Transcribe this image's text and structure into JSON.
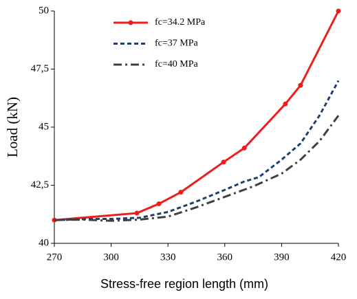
{
  "chart_data": {
    "type": "line",
    "xlabel": "Stress-free region length (mm)",
    "ylabel": "Load (kN)",
    "xlim": [
      270,
      420
    ],
    "xticks": [
      270,
      300,
      330,
      360,
      390,
      420
    ],
    "ylim": [
      40,
      50
    ],
    "yticks": [
      40,
      {
        "value": 42.5,
        "label": "42,5"
      },
      45,
      {
        "value": 47.5,
        "label": "47,5"
      },
      50
    ],
    "series": [
      {
        "name": "fc=34.2 MPa",
        "color": "#ee1c1c",
        "style": "solid",
        "marker": true,
        "x": [
          270,
          313.6,
          325.2,
          336.8,
          359.4,
          370.3,
          392,
          400,
          420
        ],
        "values": [
          41,
          41.3,
          41.7,
          42.2,
          43.5,
          44.1,
          46,
          46.8,
          50
        ]
      },
      {
        "name": "fc=37 MPa",
        "color": "#1f3f6e",
        "style": "dashed",
        "marker": false,
        "x": [
          270,
          290,
          300,
          315,
          330,
          345,
          360,
          370,
          378,
          390,
          400,
          410,
          420
        ],
        "values": [
          41,
          41.05,
          41.05,
          41.1,
          41.35,
          41.8,
          42.3,
          42.65,
          42.85,
          43.6,
          44.3,
          45.5,
          47
        ]
      },
      {
        "name": "fc=40 MPa",
        "color": "#404040",
        "style": "dashdot",
        "marker": false,
        "x": [
          270,
          285,
          300,
          315,
          330,
          345,
          360,
          375,
          390,
          400,
          410,
          420
        ],
        "values": [
          41,
          41.02,
          40.97,
          41.02,
          41.15,
          41.55,
          42,
          42.45,
          43,
          43.6,
          44.4,
          45.5
        ]
      }
    ]
  }
}
